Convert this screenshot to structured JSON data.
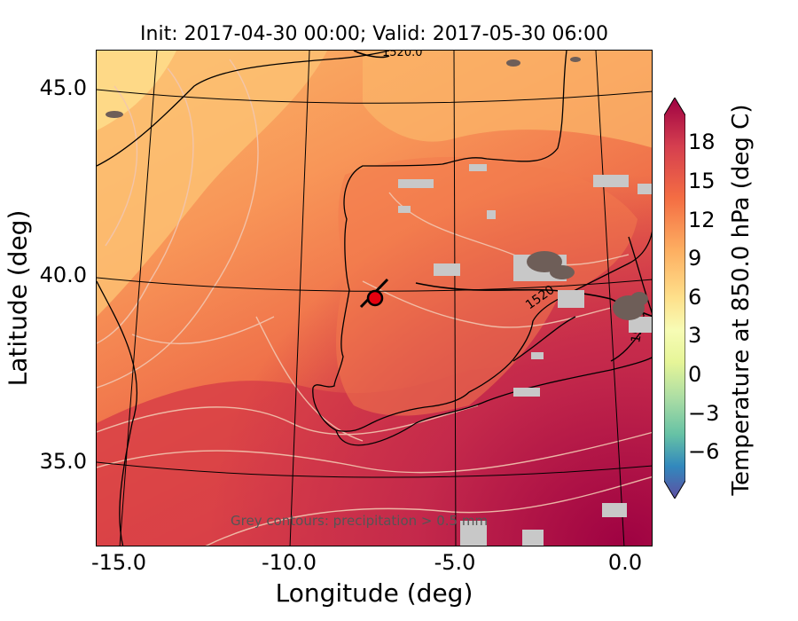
{
  "title": "Init: 2017-04-30 00:00; Valid: 2017-05-30 06:00",
  "map": {
    "xlabel": "Longitude (deg)",
    "ylabel": "Latitude (deg)",
    "xticks": [
      "-15.0",
      "-10.0",
      "-5.0",
      "0.0"
    ],
    "yticks": [
      "45.0",
      "40.0",
      "35.0"
    ],
    "contour_labels": [
      "1520.0",
      "1520",
      "1520"
    ],
    "annotation": "Grey contours: precipitation > 0.5 mm",
    "marker": {
      "type": "red-circle",
      "color": "#e4000f"
    },
    "land_outline_color": "#000000",
    "precip_contour_color": "#c8c8c8"
  },
  "colorbar": {
    "label": "Temperature at 850.0 hPa (deg C)",
    "ticks": [
      "18",
      "15",
      "12",
      "9",
      "6",
      "3",
      "0",
      "−3",
      "−6"
    ],
    "colormap": "Spectral_r",
    "extend": "both"
  }
}
